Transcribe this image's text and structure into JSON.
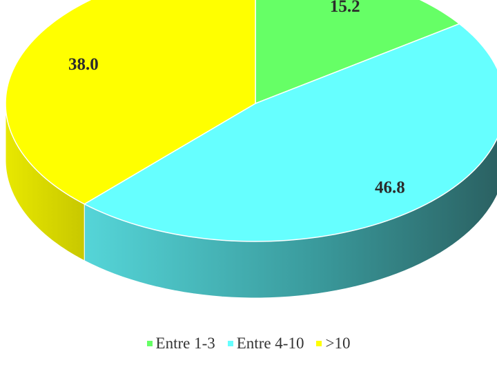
{
  "chart_data": {
    "type": "pie",
    "title": "",
    "categories": [
      "Entre 1-3",
      "Entre 4-10",
      ">10"
    ],
    "values": [
      15.2,
      46.8,
      38.0
    ],
    "data_labels": [
      "15.2",
      "46.8",
      "38.0"
    ],
    "colors": {
      "Entre 1-3": "#66ff66",
      "Entre 4-10": "#66ffff",
      ">10": "#ffff00"
    },
    "side_colors": {
      "Entre 1-3": "#2e8b2e",
      "Entre 4-10": "#2a7f80",
      ">10": "#cccc00"
    },
    "legend_position": "bottom",
    "style": "3d-pie"
  }
}
